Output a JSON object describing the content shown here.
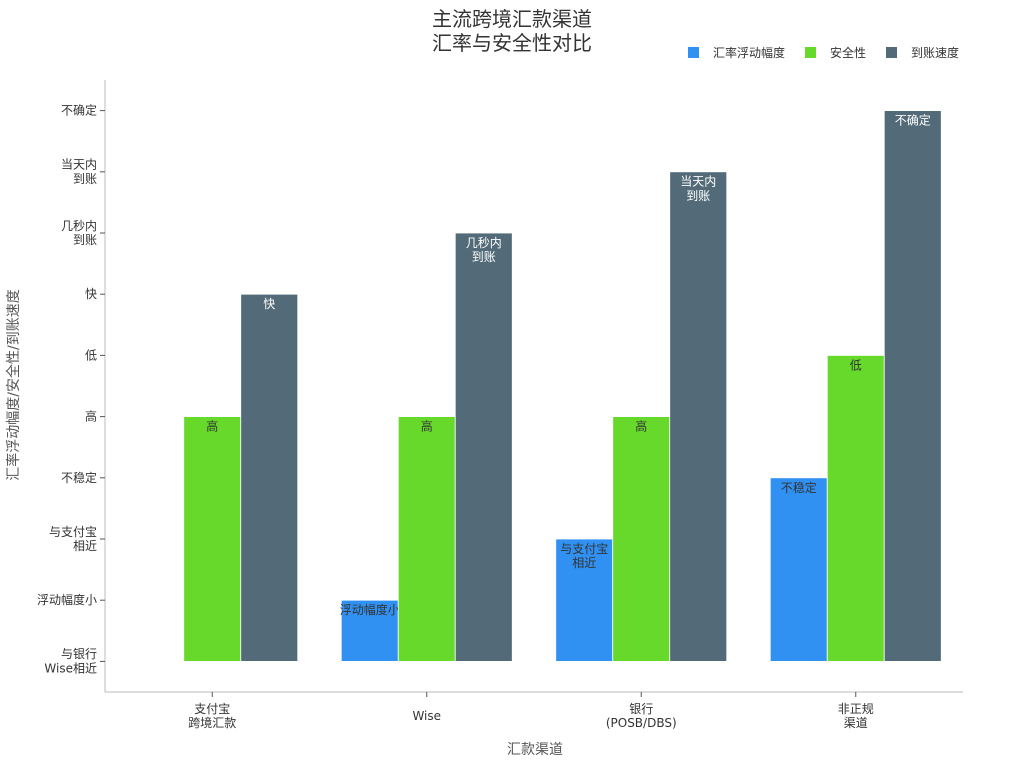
{
  "chart_data": {
    "type": "bar",
    "title": "主流跨境汇款渠道\n汇率与安全性对比",
    "x_label": "汇款渠道",
    "y_label": "汇率浮动幅度/安全性/到账速度",
    "categories": [
      "支付宝\n跨境汇款",
      "Wise",
      "银行\n(POSB/DBS)",
      "非正规\n渠道"
    ],
    "series": [
      {
        "name": "汇率浮动幅度",
        "color": "#3091f2",
        "values": [
          0,
          1,
          2,
          3
        ],
        "value_labels": [
          null,
          "浮动幅度小",
          "与支付宝\n相近",
          "不稳定"
        ]
      },
      {
        "name": "安全性",
        "color": "#66d92b",
        "values": [
          4,
          4,
          4,
          5
        ],
        "value_labels": [
          "高",
          "高",
          "高",
          "低"
        ]
      },
      {
        "name": "到账速度",
        "color": "#536b78",
        "values": [
          6,
          7,
          8,
          9
        ],
        "value_labels": [
          "快",
          "几秒内\n到账",
          "当天内\n到账",
          "不确定"
        ]
      }
    ],
    "ylim": [
      -0.5,
      9.5
    ],
    "yticks": [
      {
        "value": 0,
        "label": "与银行\nWise相近"
      },
      {
        "value": 1,
        "label": "浮动幅度小"
      },
      {
        "value": 2,
        "label": "与支付宝\n相近"
      },
      {
        "value": 3,
        "label": "不稳定"
      },
      {
        "value": 4,
        "label": "高"
      },
      {
        "value": 5,
        "label": "低"
      },
      {
        "value": 6,
        "label": "快"
      },
      {
        "value": 7,
        "label": "几秒内\n到账"
      },
      {
        "value": 8,
        "label": "当天内\n到账"
      },
      {
        "value": 9,
        "label": "不确定"
      }
    ],
    "legend_position": "upper right"
  }
}
